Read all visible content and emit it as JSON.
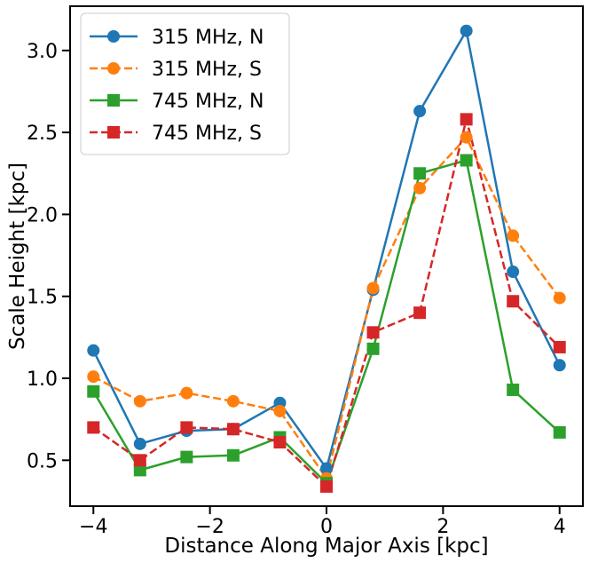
{
  "chart_data": {
    "type": "line",
    "title": "",
    "xlabel": "Distance Along Major Axis [kpc]",
    "ylabel": "Scale Height [kpc]",
    "xlim": [
      -4.4,
      4.4
    ],
    "ylim": [
      0.22,
      3.27
    ],
    "xticks": [
      -4,
      -2,
      0,
      2,
      4
    ],
    "xtick_labels": [
      "−4",
      "−2",
      "0",
      "2",
      "4"
    ],
    "yticks": [
      0.5,
      1.0,
      1.5,
      2.0,
      2.5,
      3.0
    ],
    "ytick_labels": [
      "0.5",
      "1.0",
      "1.5",
      "2.0",
      "2.5",
      "3.0"
    ],
    "grid": false,
    "legend": "top-left",
    "x": [
      -4,
      -3.2,
      -2.4,
      -1.6,
      -0.8,
      0,
      0.8,
      1.6,
      2.4,
      3.2,
      4
    ],
    "series": [
      {
        "name": "315 MHz, N",
        "color": "#1f77b4",
        "linestyle": "solid",
        "marker": "circle",
        "values": [
          1.17,
          0.6,
          0.68,
          0.69,
          0.85,
          0.45,
          1.54,
          2.63,
          3.12,
          1.65,
          1.08
        ]
      },
      {
        "name": "315 MHz, S",
        "color": "#ff7f0e",
        "linestyle": "dashed",
        "marker": "circle",
        "values": [
          1.01,
          0.86,
          0.91,
          0.86,
          0.8,
          0.39,
          1.55,
          2.16,
          2.47,
          1.87,
          1.49
        ]
      },
      {
        "name": "745 MHz, N",
        "color": "#2ca02c",
        "linestyle": "solid",
        "marker": "square",
        "values": [
          0.92,
          0.44,
          0.52,
          0.53,
          0.64,
          0.36,
          1.18,
          2.25,
          2.33,
          0.93,
          0.67
        ]
      },
      {
        "name": "745 MHz, S",
        "color": "#d62728",
        "linestyle": "dashed",
        "marker": "square",
        "values": [
          0.7,
          0.5,
          0.7,
          0.69,
          0.61,
          0.34,
          1.28,
          1.4,
          2.58,
          1.47,
          1.19
        ]
      }
    ]
  }
}
